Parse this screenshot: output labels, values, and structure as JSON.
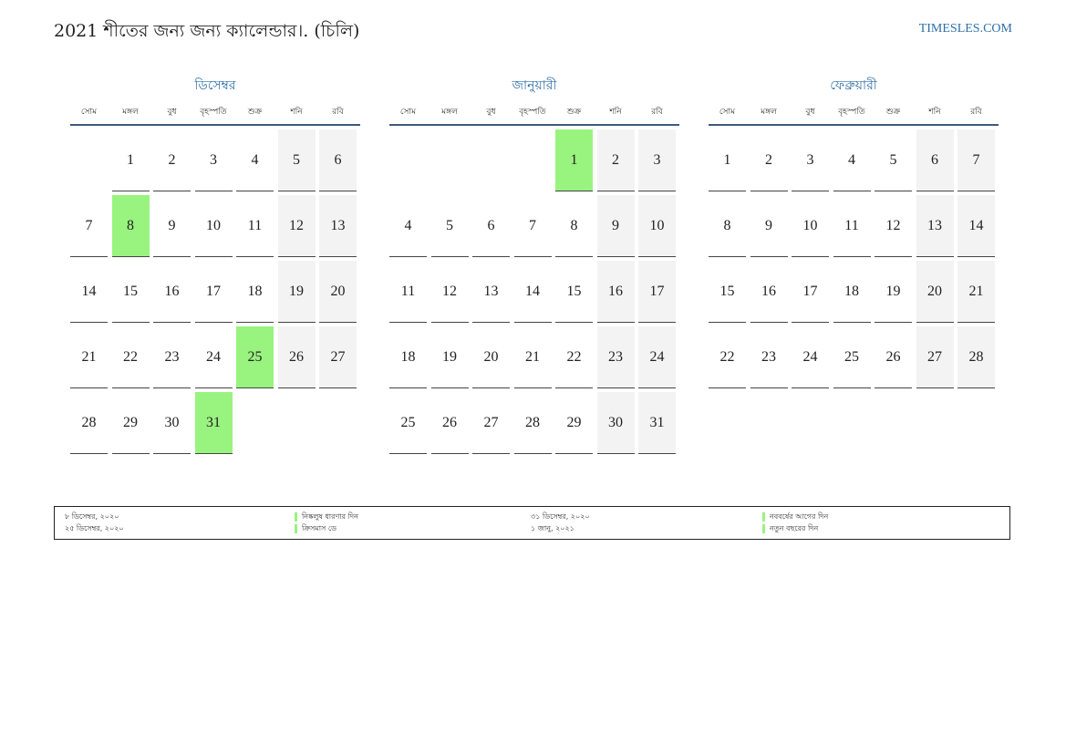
{
  "header": {
    "title": "2021 শীতের জন্য জন্য ক্যালেন্ডার।. (চিলি)",
    "site": "TIMESLES.COM"
  },
  "colors": {
    "accent": "#2e6fa8",
    "holiday": "#99f37f",
    "weekend": "#f3f3f3",
    "rule": "#3a5a80"
  },
  "weekdays": [
    "সোম",
    "মঙ্গল",
    "বুধ",
    "বৃহস্পতি",
    "শুক্র",
    "শনি",
    "রবি"
  ],
  "months": [
    {
      "name": "ডিসেম্বর",
      "weeks": [
        [
          "",
          "1",
          "2",
          "3",
          "4",
          "5",
          "6"
        ],
        [
          "7",
          "8",
          "9",
          "10",
          "11",
          "12",
          "13"
        ],
        [
          "14",
          "15",
          "16",
          "17",
          "18",
          "19",
          "20"
        ],
        [
          "21",
          "22",
          "23",
          "24",
          "25",
          "26",
          "27"
        ],
        [
          "28",
          "29",
          "30",
          "31",
          "",
          "",
          ""
        ]
      ],
      "holidays": [
        "8",
        "25",
        "31"
      ]
    },
    {
      "name": "জানুয়ারী",
      "weeks": [
        [
          "",
          "",
          "",
          "",
          "1",
          "2",
          "3"
        ],
        [
          "4",
          "5",
          "6",
          "7",
          "8",
          "9",
          "10"
        ],
        [
          "11",
          "12",
          "13",
          "14",
          "15",
          "16",
          "17"
        ],
        [
          "18",
          "19",
          "20",
          "21",
          "22",
          "23",
          "24"
        ],
        [
          "25",
          "26",
          "27",
          "28",
          "29",
          "30",
          "31"
        ]
      ],
      "holidays": [
        "1"
      ]
    },
    {
      "name": "ফেব্রুয়ারী",
      "weeks": [
        [
          "1",
          "2",
          "3",
          "4",
          "5",
          "6",
          "7"
        ],
        [
          "8",
          "9",
          "10",
          "11",
          "12",
          "13",
          "14"
        ],
        [
          "15",
          "16",
          "17",
          "18",
          "19",
          "20",
          "21"
        ],
        [
          "22",
          "23",
          "24",
          "25",
          "26",
          "27",
          "28"
        ]
      ],
      "holidays": []
    }
  ],
  "legend": {
    "left": [
      {
        "date": "৮ ডিসেম্বর, ২০২০",
        "name": "নিষ্কলুষ ধারণার দিন"
      },
      {
        "date": "২৫ ডিসেম্বর, ২০২০",
        "name": "ক্রিসমাস ডে"
      }
    ],
    "right": [
      {
        "date": "৩১ ডিসেম্বর, ২০২০",
        "name": "নববর্ষের আগের দিন"
      },
      {
        "date": "১ জানু, ২০২১",
        "name": "নতুন বছরের দিন"
      }
    ]
  }
}
